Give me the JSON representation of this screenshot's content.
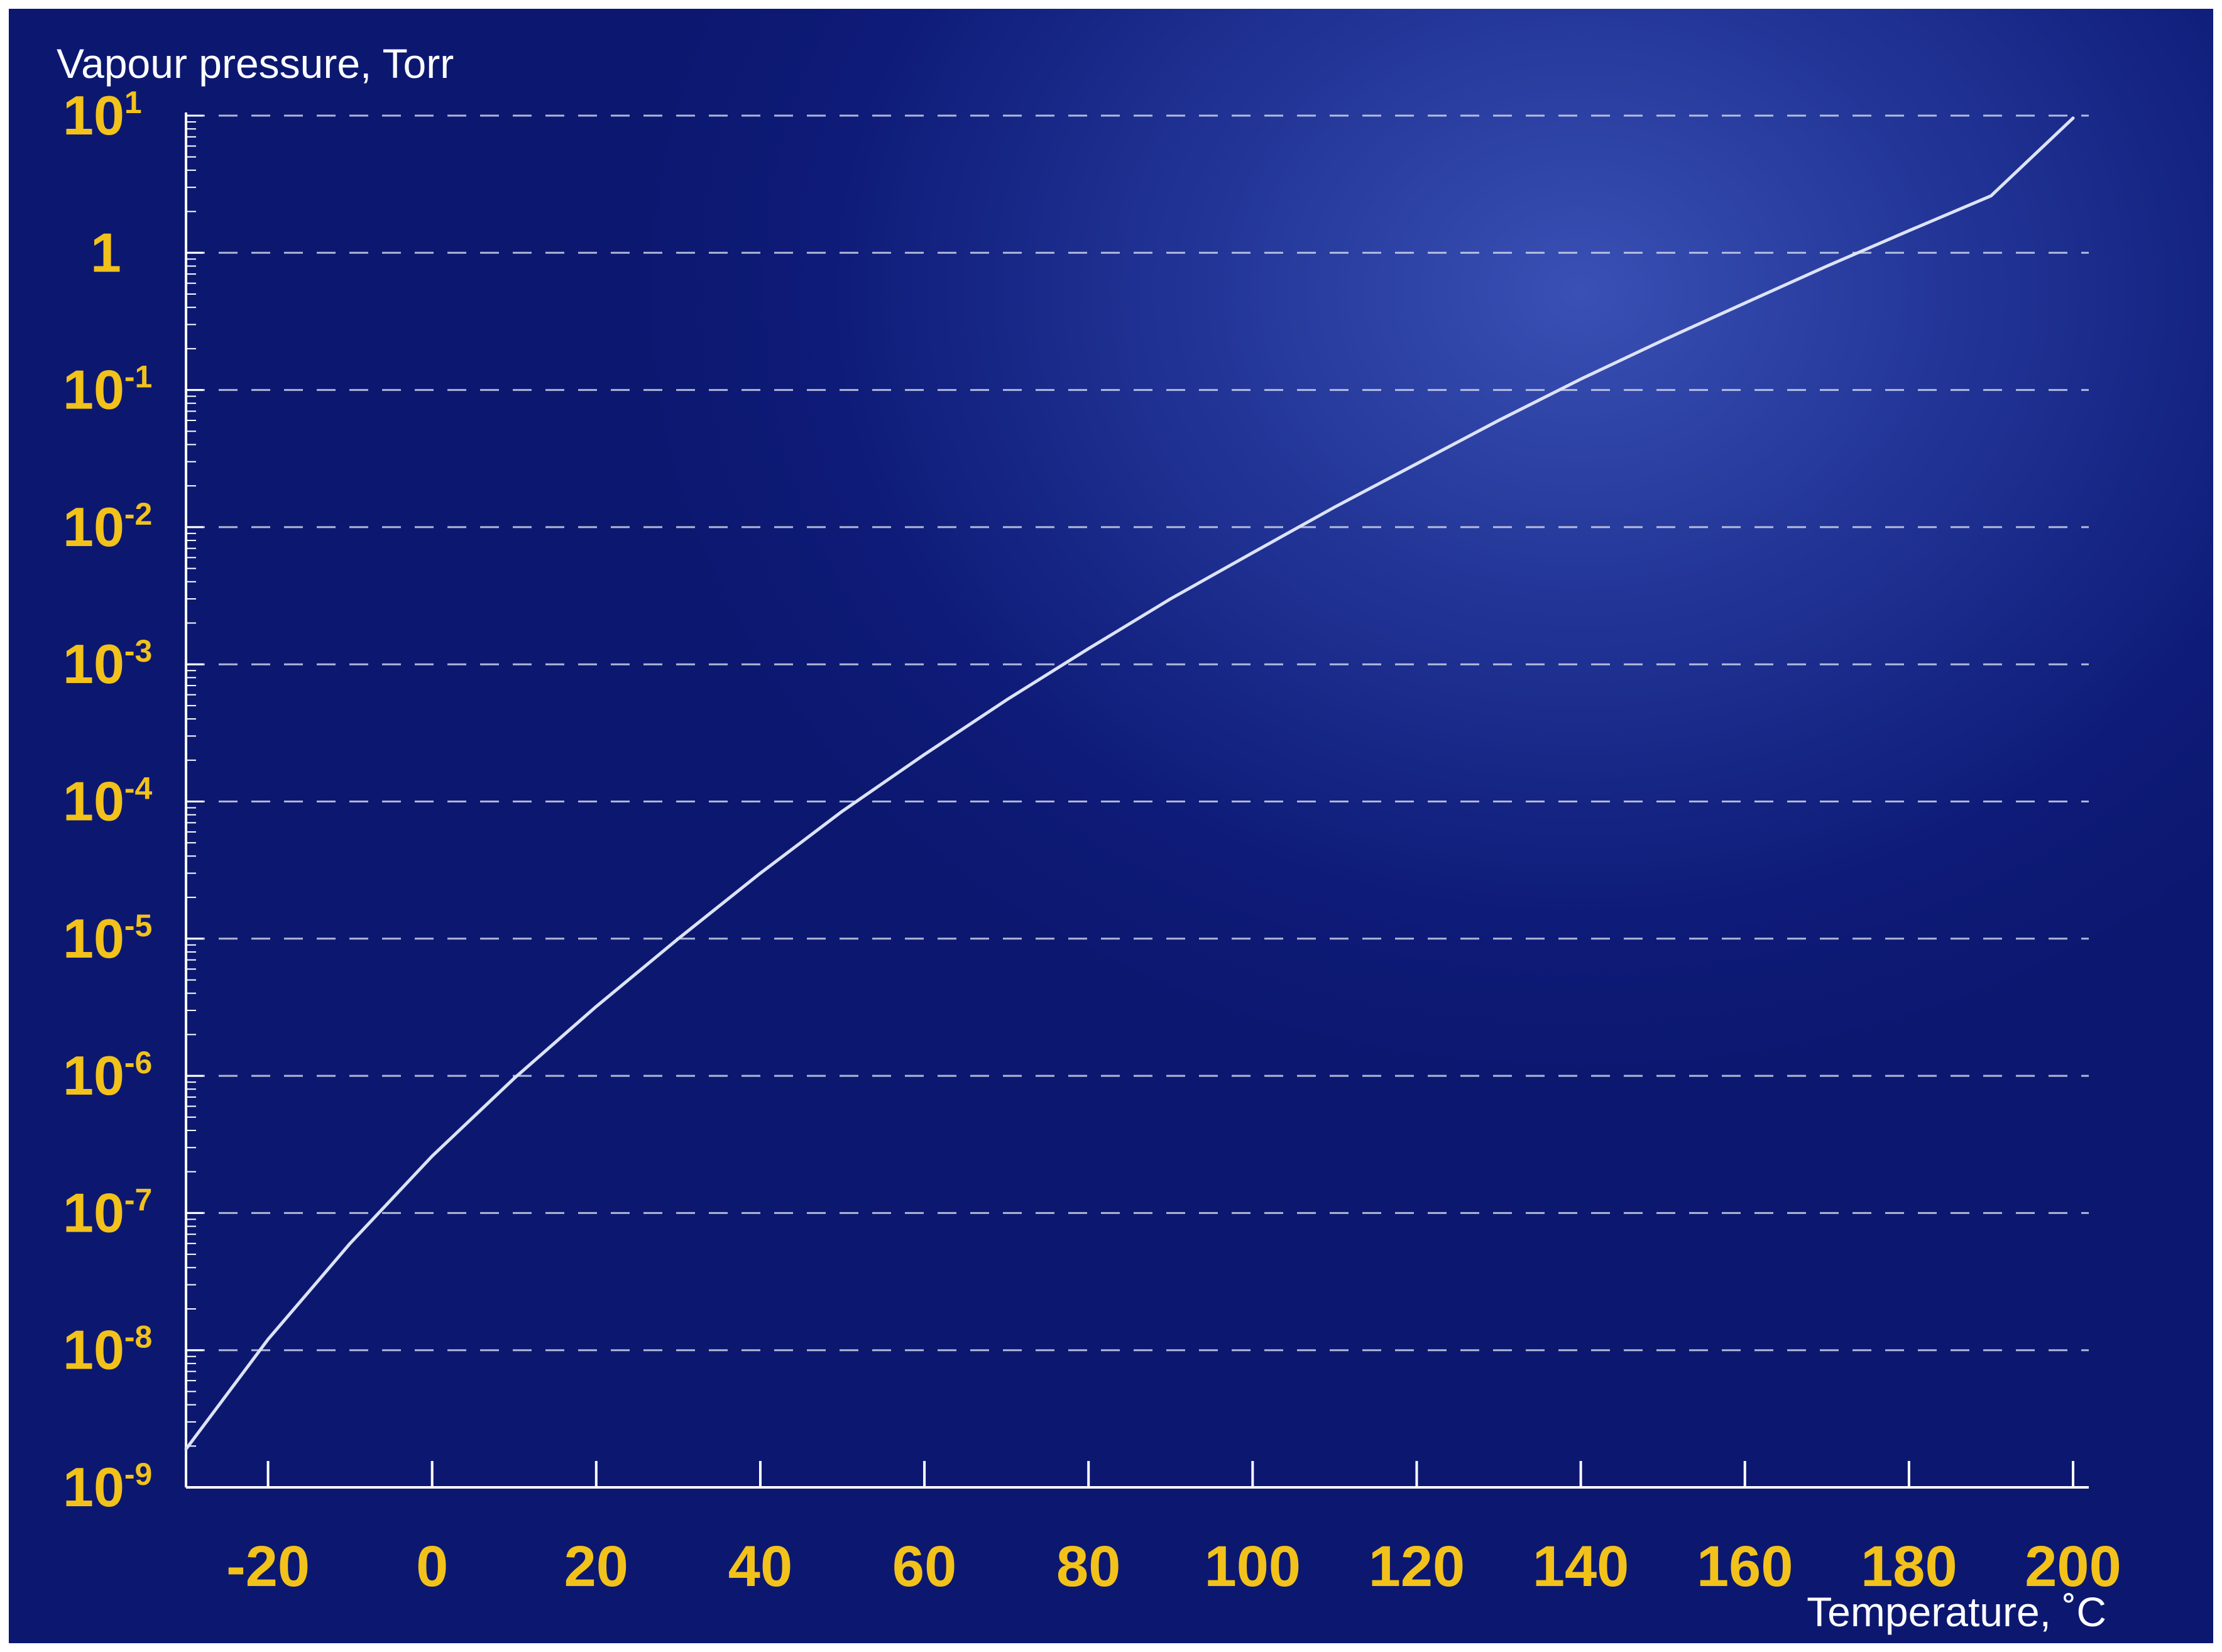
{
  "chart_data": {
    "type": "line",
    "ylabel": "Vapour pressure, Torr",
    "xlabel": "Temperature, ˚C",
    "yscale": "log",
    "ylim": [
      1e-09,
      10
    ],
    "xlim": [
      -30,
      200
    ],
    "x_ticks": [
      -20,
      0,
      20,
      40,
      60,
      80,
      100,
      120,
      140,
      160,
      180,
      200
    ],
    "x_tick_labels": [
      "-20",
      "0",
      "20",
      "40",
      "60",
      "80",
      "100",
      "120",
      "140",
      "160",
      "180",
      "200"
    ],
    "y_ticks": [
      {
        "value": 10,
        "base": "10",
        "exp": "1"
      },
      {
        "value": 1,
        "base": "1",
        "exp": ""
      },
      {
        "value": 0.1,
        "base": "10",
        "exp": "-1"
      },
      {
        "value": 0.01,
        "base": "10",
        "exp": "-2"
      },
      {
        "value": 0.001,
        "base": "10",
        "exp": "-3"
      },
      {
        "value": 0.0001,
        "base": "10",
        "exp": "-4"
      },
      {
        "value": 1e-05,
        "base": "10",
        "exp": "-5"
      },
      {
        "value": 1e-06,
        "base": "10",
        "exp": "-6"
      },
      {
        "value": 1e-07,
        "base": "10",
        "exp": "-7"
      },
      {
        "value": 1e-08,
        "base": "10",
        "exp": "-8"
      },
      {
        "value": 1e-09,
        "base": "10",
        "exp": "-9"
      }
    ],
    "grid": {
      "y_major": "dashed",
      "x": false
    },
    "series": [
      {
        "x": [
          -30,
          -20,
          -10,
          0,
          10,
          20,
          30,
          40,
          50,
          60,
          70,
          80,
          90,
          100,
          110,
          120,
          130,
          140,
          150,
          160,
          170,
          180,
          190,
          200
        ],
        "y": [
          1.9e-09,
          1.2e-08,
          6e-08,
          2.6e-07,
          9.6e-07,
          3.2e-06,
          1e-05,
          3e-05,
          8.5e-05,
          0.00022,
          0.00055,
          0.0013,
          0.003,
          0.0065,
          0.014,
          0.029,
          0.06,
          0.12,
          0.23,
          0.43,
          0.8,
          1.45,
          2.6,
          9.6
        ]
      }
    ],
    "colors": {
      "background_light": "#3a50b4",
      "background_dark": "#0c1870",
      "tick_label": "#f2c21b",
      "line": "#dde3f7",
      "grid": "#d8deef",
      "axis": "#ffffff",
      "title": "#ffffff"
    }
  }
}
